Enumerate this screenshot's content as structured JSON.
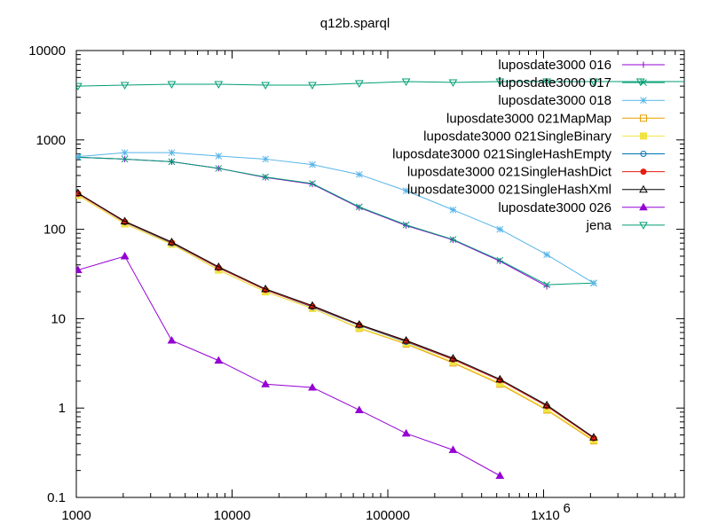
{
  "chart_data": {
    "type": "line",
    "title": "q12b.sparql",
    "xscale": "log",
    "yscale": "log",
    "xlim": [
      1000,
      8000000
    ],
    "ylim": [
      0.1,
      10000
    ],
    "legend_position": "top-right",
    "x_ticks": [
      {
        "value": 1000,
        "label": "1000"
      },
      {
        "value": 10000,
        "label": "10000"
      },
      {
        "value": 100000,
        "label": "100000"
      },
      {
        "value": 1000000,
        "label": "1x10",
        "exp": "6"
      }
    ],
    "y_ticks": [
      {
        "value": 0.1,
        "label": "0.1"
      },
      {
        "value": 1,
        "label": "1"
      },
      {
        "value": 10,
        "label": "10"
      },
      {
        "value": 100,
        "label": "100"
      },
      {
        "value": 1000,
        "label": "1000"
      },
      {
        "value": 10000,
        "label": "10000"
      }
    ],
    "series": [
      {
        "name": "luposdate3000 016",
        "color": "#9400d3",
        "marker": "plus",
        "points": [
          [
            1024,
            640
          ],
          [
            2048,
            610
          ],
          [
            4096,
            570
          ],
          [
            8192,
            480
          ],
          [
            16384,
            380
          ],
          [
            32768,
            320
          ],
          [
            65536,
            175
          ],
          [
            131072,
            110
          ],
          [
            262144,
            76
          ],
          [
            524288,
            44
          ],
          [
            1048576,
            23
          ]
        ]
      },
      {
        "name": "luposdate3000 017",
        "color": "#009e73",
        "marker": "cross",
        "points": [
          [
            1024,
            640
          ],
          [
            2048,
            610
          ],
          [
            4096,
            570
          ],
          [
            8192,
            480
          ],
          [
            16384,
            385
          ],
          [
            32768,
            325
          ],
          [
            65536,
            178
          ],
          [
            131072,
            112
          ],
          [
            262144,
            77
          ],
          [
            524288,
            45
          ],
          [
            1048576,
            24
          ],
          [
            2097152,
            25
          ]
        ]
      },
      {
        "name": "luposdate3000 018",
        "color": "#56b4e9",
        "marker": "star",
        "points": [
          [
            1024,
            650
          ],
          [
            2048,
            720
          ],
          [
            4096,
            720
          ],
          [
            8192,
            660
          ],
          [
            16384,
            610
          ],
          [
            32768,
            530
          ],
          [
            65536,
            410
          ],
          [
            131072,
            270
          ],
          [
            262144,
            165
          ],
          [
            524288,
            100
          ],
          [
            1048576,
            52
          ],
          [
            2097152,
            25
          ]
        ]
      },
      {
        "name": "luposdate3000 021MapMap",
        "color": "#e69f00",
        "marker": "square-open",
        "points": [
          [
            1024,
            240
          ],
          [
            2048,
            115
          ],
          [
            4096,
            68
          ],
          [
            8192,
            35
          ],
          [
            16384,
            20
          ],
          [
            32768,
            13
          ],
          [
            65536,
            7.8
          ],
          [
            131072,
            5.2
          ],
          [
            262144,
            3.2
          ],
          [
            524288,
            1.85
          ],
          [
            1048576,
            0.95
          ],
          [
            2097152,
            0.43
          ]
        ]
      },
      {
        "name": "luposdate3000 021SingleBinary",
        "color": "#f0e442",
        "marker": "square-filled",
        "points": [
          [
            1024,
            240
          ],
          [
            2048,
            115
          ],
          [
            4096,
            68
          ],
          [
            8192,
            35
          ],
          [
            16384,
            20
          ],
          [
            32768,
            13
          ],
          [
            65536,
            7.9
          ],
          [
            131072,
            5.3
          ],
          [
            262144,
            3.3
          ],
          [
            524288,
            1.9
          ],
          [
            1048576,
            0.97
          ],
          [
            2097152,
            0.44
          ]
        ]
      },
      {
        "name": "luposdate3000 021SingleHashEmpty",
        "color": "#0072b2",
        "marker": "circle-open",
        "points": [
          [
            1024,
            250
          ],
          [
            2048,
            120
          ],
          [
            4096,
            70
          ],
          [
            8192,
            37
          ],
          [
            16384,
            21
          ],
          [
            32768,
            13.5
          ],
          [
            65536,
            8.4
          ],
          [
            131072,
            5.5
          ],
          [
            262144,
            3.5
          ],
          [
            524288,
            2.05
          ],
          [
            1048576,
            1.05
          ],
          [
            2097152,
            0.46
          ]
        ]
      },
      {
        "name": "luposdate3000 021SingleHashDict",
        "color": "#e51e10",
        "marker": "circle-filled",
        "points": [
          [
            1024,
            250
          ],
          [
            2048,
            121
          ],
          [
            4096,
            71
          ],
          [
            8192,
            37
          ],
          [
            16384,
            21
          ],
          [
            32768,
            13.7
          ],
          [
            65536,
            8.5
          ],
          [
            131072,
            5.6
          ],
          [
            262144,
            3.5
          ],
          [
            524288,
            2.05
          ],
          [
            1048576,
            1.05
          ],
          [
            2097152,
            0.46
          ]
        ]
      },
      {
        "name": "luposdate3000 021SingleHashXml",
        "color": "#000000",
        "marker": "triangle-open",
        "points": [
          [
            1024,
            255
          ],
          [
            2048,
            123
          ],
          [
            4096,
            72
          ],
          [
            8192,
            38
          ],
          [
            16384,
            21.5
          ],
          [
            32768,
            14
          ],
          [
            65536,
            8.6
          ],
          [
            131072,
            5.7
          ],
          [
            262144,
            3.6
          ],
          [
            524288,
            2.1
          ],
          [
            1048576,
            1.08
          ],
          [
            2097152,
            0.47
          ]
        ]
      },
      {
        "name": "luposdate3000 026",
        "color": "#9400d3",
        "marker": "triangle-filled",
        "points": [
          [
            1024,
            35
          ],
          [
            2048,
            50
          ],
          [
            4096,
            5.7
          ],
          [
            8192,
            3.4
          ],
          [
            16384,
            1.85
          ],
          [
            32768,
            1.7
          ],
          [
            65536,
            0.95
          ],
          [
            131072,
            0.52
          ],
          [
            262144,
            0.34
          ],
          [
            524288,
            0.175
          ]
        ]
      },
      {
        "name": "jena",
        "color": "#009e73",
        "marker": "triangle-down-open",
        "points": [
          [
            1024,
            4000
          ],
          [
            2048,
            4100
          ],
          [
            4096,
            4200
          ],
          [
            8192,
            4200
          ],
          [
            16384,
            4100
          ],
          [
            32768,
            4100
          ],
          [
            65536,
            4300
          ],
          [
            131072,
            4500
          ],
          [
            262144,
            4400
          ],
          [
            524288,
            4500
          ],
          [
            1048576,
            4500
          ],
          [
            2097152,
            4500
          ],
          [
            4194304,
            4500
          ],
          [
            8388608,
            4500
          ]
        ]
      }
    ]
  }
}
